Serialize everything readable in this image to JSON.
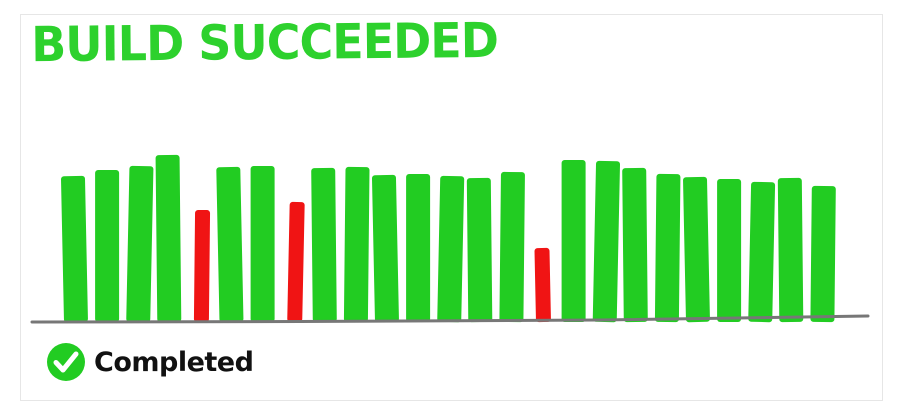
{
  "title": "BUILD SUCCEEDED",
  "status": {
    "label": "Completed",
    "icon": "check-circle-icon"
  },
  "colors": {
    "success": "#22cc22",
    "failure": "#f01414",
    "baseline": "#777777",
    "title": "#2dd12d"
  },
  "chart_data": {
    "type": "bar",
    "title": "BUILD SUCCEEDED",
    "xlabel": "",
    "ylabel": "",
    "grid": false,
    "ylim": [
      0,
      170
    ],
    "values": [
      146,
      152,
      156,
      167,
      112,
      155,
      156,
      120,
      154,
      155,
      147,
      148,
      146,
      144,
      150,
      74,
      162,
      161,
      154,
      148,
      145,
      143,
      140,
      144,
      136
    ],
    "status": [
      "success",
      "success",
      "success",
      "success",
      "failure",
      "success",
      "success",
      "failure",
      "success",
      "success",
      "success",
      "success",
      "success",
      "success",
      "success",
      "failure",
      "success",
      "success",
      "success",
      "success",
      "success",
      "success",
      "success",
      "success",
      "success"
    ]
  }
}
